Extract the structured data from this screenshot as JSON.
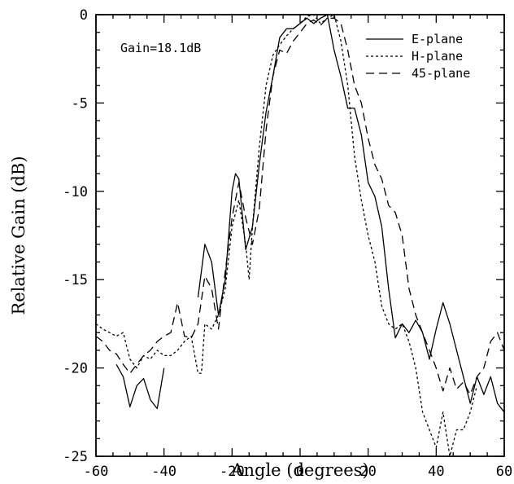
{
  "chart_data": {
    "type": "line",
    "title": "",
    "xlabel": "Angle   (degrees)",
    "ylabel": "Relative Gain  (dB)",
    "xlim": [
      -60,
      60
    ],
    "ylim": [
      -25,
      0
    ],
    "xticks": [
      -60,
      -40,
      -20,
      0,
      20,
      40,
      60
    ],
    "yticks": [
      0,
      -5,
      -10,
      -15,
      -20,
      -25
    ],
    "grid": false,
    "legend_position": "top-right",
    "annotations": [
      {
        "text": "Gain=18.1dB"
      }
    ],
    "series": [
      {
        "name": "E-plane",
        "style": "solid",
        "x": [
          -54,
          -52,
          -50,
          -48,
          -46,
          -44,
          -42,
          -40,
          null,
          -30,
          -28,
          -26,
          -24,
          -22,
          -20,
          -19,
          -18,
          -16,
          -14,
          -12,
          -10,
          -8,
          -6,
          -4,
          -2,
          0,
          2,
          4,
          6,
          8,
          10,
          12,
          14,
          16,
          18,
          20,
          22,
          24,
          26,
          28,
          30,
          32,
          34,
          36,
          38,
          40,
          42,
          44,
          46,
          48,
          50,
          52,
          54,
          56,
          58,
          60
        ],
        "y": [
          -19.8,
          -20.5,
          -22.2,
          -21.0,
          -20.6,
          -21.8,
          -22.3,
          -20.0,
          null,
          -16.0,
          -13.0,
          -14.0,
          -17.0,
          -15.0,
          -10.0,
          -9.0,
          -9.3,
          -13.3,
          -12.0,
          -8.5,
          -5.5,
          -3.5,
          -1.3,
          -0.8,
          -0.8,
          -0.5,
          -0.2,
          -0.5,
          -0.2,
          0.0,
          -2.0,
          -3.5,
          -5.3,
          -5.3,
          -6.8,
          -9.5,
          -10.3,
          -12.0,
          -15.5,
          -18.3,
          -17.5,
          -18.0,
          -17.3,
          -18.0,
          -19.5,
          -17.8,
          -16.3,
          -17.5,
          -19.0,
          -20.5,
          -22.0,
          -20.5,
          -21.5,
          -20.5,
          -22.0,
          -22.5
        ]
      },
      {
        "name": "H-plane",
        "style": "dotted",
        "x": [
          -60,
          -58,
          -56,
          -54,
          -52,
          -50,
          -48,
          -46,
          -44,
          -42,
          -40,
          -38,
          -36,
          -34,
          -32,
          -30,
          -29,
          -28,
          -26,
          -24,
          -22,
          -20,
          -18,
          -16,
          -15,
          -14,
          -12,
          -10,
          -8,
          -6,
          -4,
          -2,
          0,
          2,
          4,
          6,
          8,
          10,
          12,
          14,
          16,
          18,
          20,
          22,
          24,
          26,
          28,
          30,
          32,
          34,
          36,
          38,
          40,
          42,
          44,
          46,
          48,
          50,
          52
        ],
        "y": [
          -17.5,
          -17.8,
          -18.0,
          -18.2,
          -18.0,
          -19.5,
          -20.0,
          -19.3,
          -19.5,
          -19.0,
          -19.3,
          -19.3,
          -19.0,
          -18.5,
          -18.2,
          -20.3,
          -20.3,
          -17.5,
          -17.8,
          -17.0,
          -15.5,
          -12.0,
          -10.5,
          -13.0,
          -15.0,
          -12.0,
          -7.5,
          -4.0,
          -2.3,
          -1.7,
          -1.2,
          -0.8,
          -0.5,
          -0.1,
          0.0,
          -0.5,
          -0.2,
          0.0,
          -1.5,
          -4.0,
          -8.0,
          -10.5,
          -12.5,
          -14.0,
          -16.5,
          -17.5,
          -17.8,
          -17.5,
          -18.5,
          -20.0,
          -22.5,
          -23.5,
          -24.5,
          -22.5,
          -25.0,
          -23.5,
          -23.5,
          -22.5,
          -21.0
        ]
      },
      {
        "name": "45-plane",
        "style": "dashed",
        "x": [
          -60,
          -58,
          -56,
          -54,
          -52,
          -50,
          -48,
          -46,
          -44,
          -42,
          -40,
          -38,
          -36,
          -34,
          -32,
          -30,
          -28,
          -26,
          -24,
          -22,
          -20,
          -18,
          -16,
          -14,
          -12,
          -10,
          -8,
          -6,
          -4,
          -2,
          0,
          2,
          4,
          6,
          8,
          10,
          12,
          14,
          16,
          18,
          20,
          22,
          24,
          26,
          28,
          30,
          32,
          34,
          36,
          38,
          40,
          42,
          44,
          46,
          48,
          50,
          52,
          54,
          56,
          58,
          60
        ],
        "y": [
          -18.2,
          -18.5,
          -19.0,
          -19.2,
          -19.8,
          -20.3,
          -19.8,
          -19.3,
          -19.0,
          -18.5,
          -18.2,
          -18.0,
          -16.3,
          -18.2,
          -18.3,
          -17.5,
          -14.8,
          -15.5,
          -17.8,
          -14.5,
          -11.5,
          -9.5,
          -11.5,
          -13.0,
          -11.0,
          -6.5,
          -3.5,
          -2.0,
          -2.2,
          -1.5,
          -1.0,
          -0.5,
          -0.3,
          -0.6,
          -0.2,
          -0.2,
          -0.5,
          -2.0,
          -4.0,
          -5.0,
          -7.0,
          -8.5,
          -9.3,
          -10.8,
          -11.2,
          -12.5,
          -15.5,
          -17.0,
          -18.0,
          -19.0,
          -20.0,
          -21.3,
          -20.0,
          -21.2,
          -20.8,
          -21.5,
          -20.5,
          -20.0,
          -18.5,
          -18.0,
          -19.0
        ]
      }
    ]
  }
}
